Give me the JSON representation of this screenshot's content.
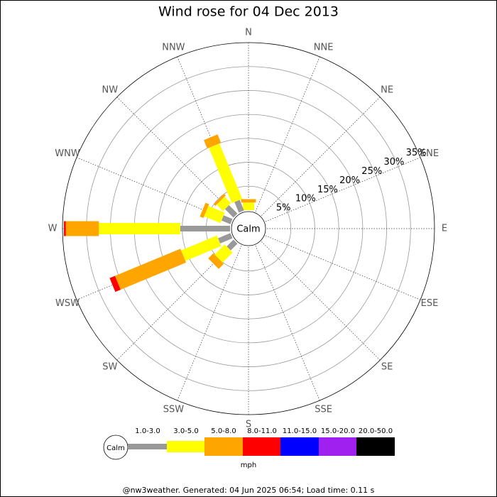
{
  "chart_data": {
    "type": "windrose",
    "title": "Wind rose for 04 Dec 2013",
    "directions": [
      "N",
      "NNE",
      "NE",
      "ENE",
      "E",
      "ESE",
      "SE",
      "SSE",
      "S",
      "SSW",
      "SW",
      "WSW",
      "W",
      "WNW",
      "NW",
      "NNW"
    ],
    "series": [
      {
        "name": "1.0-3.0",
        "color": "#999999",
        "values": [
          0,
          0,
          0,
          0,
          0,
          0,
          0,
          0,
          0,
          0,
          2,
          2.8,
          10.4,
          2,
          2.5,
          2.4
        ]
      },
      {
        "name": "3.0-5.0",
        "color": "#ffff00",
        "values": [
          1.6,
          0,
          0,
          0,
          0,
          0,
          0,
          0,
          0,
          0,
          3,
          8.1,
          17,
          3.7,
          1.9,
          12.5
        ]
      },
      {
        "name": "5.0-8.0",
        "color": "#ffa500",
        "values": [
          0.7,
          0,
          0,
          0,
          0,
          0,
          0,
          0,
          0,
          0,
          1.5,
          14.8,
          6.9,
          0.8,
          0.5,
          1.9
        ]
      },
      {
        "name": "8.0-11.0",
        "color": "#ff0000",
        "values": [
          0,
          0,
          0,
          0,
          0,
          0,
          0,
          0,
          0,
          0,
          0,
          1.2,
          0.4,
          0,
          0,
          0
        ]
      },
      {
        "name": "11.0-15.0",
        "color": "#0000ff",
        "values": [
          0,
          0,
          0,
          0,
          0,
          0,
          0,
          0,
          0,
          0,
          0,
          0,
          0,
          0,
          0,
          0
        ]
      },
      {
        "name": "15.0-20.0",
        "color": "#a020f0",
        "values": [
          0,
          0,
          0,
          0,
          0,
          0,
          0,
          0,
          0,
          0,
          0,
          0,
          0,
          0,
          0,
          0
        ]
      },
      {
        "name": "20.0-50.0",
        "color": "#000000",
        "values": [
          0,
          0,
          0,
          0,
          0,
          0,
          0,
          0,
          0,
          0,
          0,
          0,
          0,
          0,
          0,
          0
        ]
      }
    ],
    "rlim": [
      0,
      35
    ],
    "rticks": [
      {
        "value": 5,
        "label": "5%"
      },
      {
        "value": 10,
        "label": "10%"
      },
      {
        "value": 15,
        "label": "15%"
      },
      {
        "value": 20,
        "label": "20%"
      },
      {
        "value": 25,
        "label": "25%"
      },
      {
        "value": 30,
        "label": "30%"
      },
      {
        "value": 35,
        "label": "35%"
      }
    ],
    "center_label": "Calm",
    "unit_label": "mph",
    "footer": "@nw3weather. Generated: 04 Jun 2025 06:54; Load time: 0.11 s"
  }
}
